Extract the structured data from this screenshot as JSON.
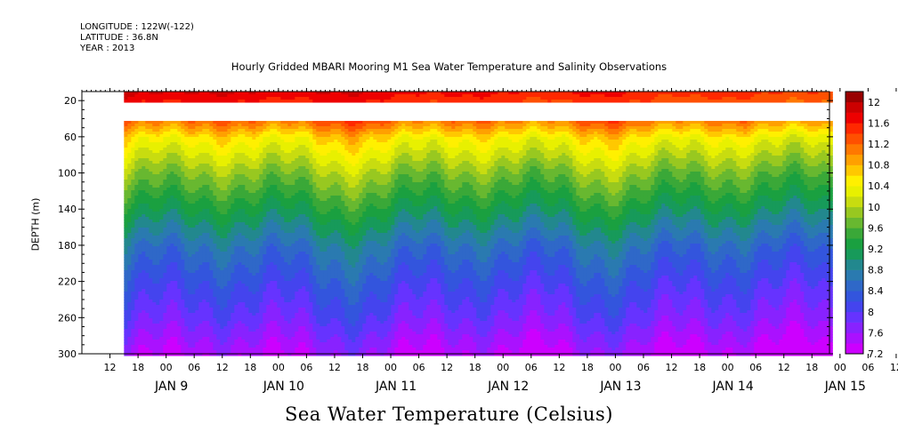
{
  "header": {
    "longitude": "LONGITUDE : 122W(-122)",
    "latitude": "LATITUDE : 36.8N",
    "year": "YEAR : 2013"
  },
  "chart_data": {
    "type": "heatmap",
    "title": "Hourly Gridded MBARI Mooring M1 Sea Water Temperature and Salinity Observations",
    "xlabel_bottom": "Sea Water Temperature (Celsius)",
    "ylabel": "DEPTH (m)",
    "y_ticks": [
      20,
      60,
      100,
      140,
      180,
      220,
      260,
      300
    ],
    "ylim": [
      10,
      300
    ],
    "x_hour_ticks": [
      "12",
      "18",
      "00",
      "06",
      "12",
      "18",
      "00",
      "06",
      "12",
      "18",
      "00",
      "06",
      "12",
      "18",
      "00",
      "06",
      "12",
      "18",
      "00",
      "06",
      "12",
      "18",
      "00",
      "06",
      "12",
      "18",
      "00",
      "06",
      "12",
      "18"
    ],
    "x_day_labels": [
      "JAN  9",
      "JAN 10",
      "JAN 11",
      "JAN 12",
      "JAN 13",
      "JAN 14",
      "JAN 15"
    ],
    "x_start": "JAN 9 06:00",
    "data_start": "JAN 9 15:00",
    "data_end": "JAN 15 24:00",
    "colorbar": {
      "levels": [
        7.2,
        7.4,
        7.6,
        7.8,
        8.0,
        8.2,
        8.4,
        8.6,
        8.8,
        9.0,
        9.2,
        9.4,
        9.6,
        9.8,
        10.0,
        10.2,
        10.4,
        10.6,
        10.8,
        11.0,
        11.2,
        11.4,
        11.6,
        11.8,
        12.0,
        12.2
      ],
      "labels": [
        "12",
        "11.6",
        "11.2",
        "10.8",
        "10.4",
        "10",
        "9.6",
        "9.2",
        "8.8",
        "8.4",
        "8",
        "7.6",
        "7.2"
      ],
      "colors": [
        "#cc00ff",
        "#aa11ff",
        "#8822ff",
        "#6633ff",
        "#4444ee",
        "#3355dd",
        "#2f68c8",
        "#2a7ab0",
        "#22888e",
        "#179a5a",
        "#1aa040",
        "#3aa838",
        "#68b830",
        "#98c820",
        "#c8dc10",
        "#e8f000",
        "#fff000",
        "#ffc800",
        "#ffa000",
        "#ff7800",
        "#ff5000",
        "#ff2800",
        "#ee0000",
        "#cc0000",
        "#990000"
      ]
    },
    "depth_profile": [
      {
        "depth": 10,
        "temp": 11.9
      },
      {
        "depth": 40,
        "temp": 11.3
      },
      {
        "depth": 60,
        "temp": 10.6
      },
      {
        "depth": 100,
        "temp": 9.9
      },
      {
        "depth": 140,
        "temp": 9.3
      },
      {
        "depth": 180,
        "temp": 8.7
      },
      {
        "depth": 220,
        "temp": 8.3
      },
      {
        "depth": 260,
        "temp": 7.95
      },
      {
        "depth": 300,
        "temp": 7.5
      }
    ],
    "gap_depth_range": [
      20,
      40
    ]
  }
}
